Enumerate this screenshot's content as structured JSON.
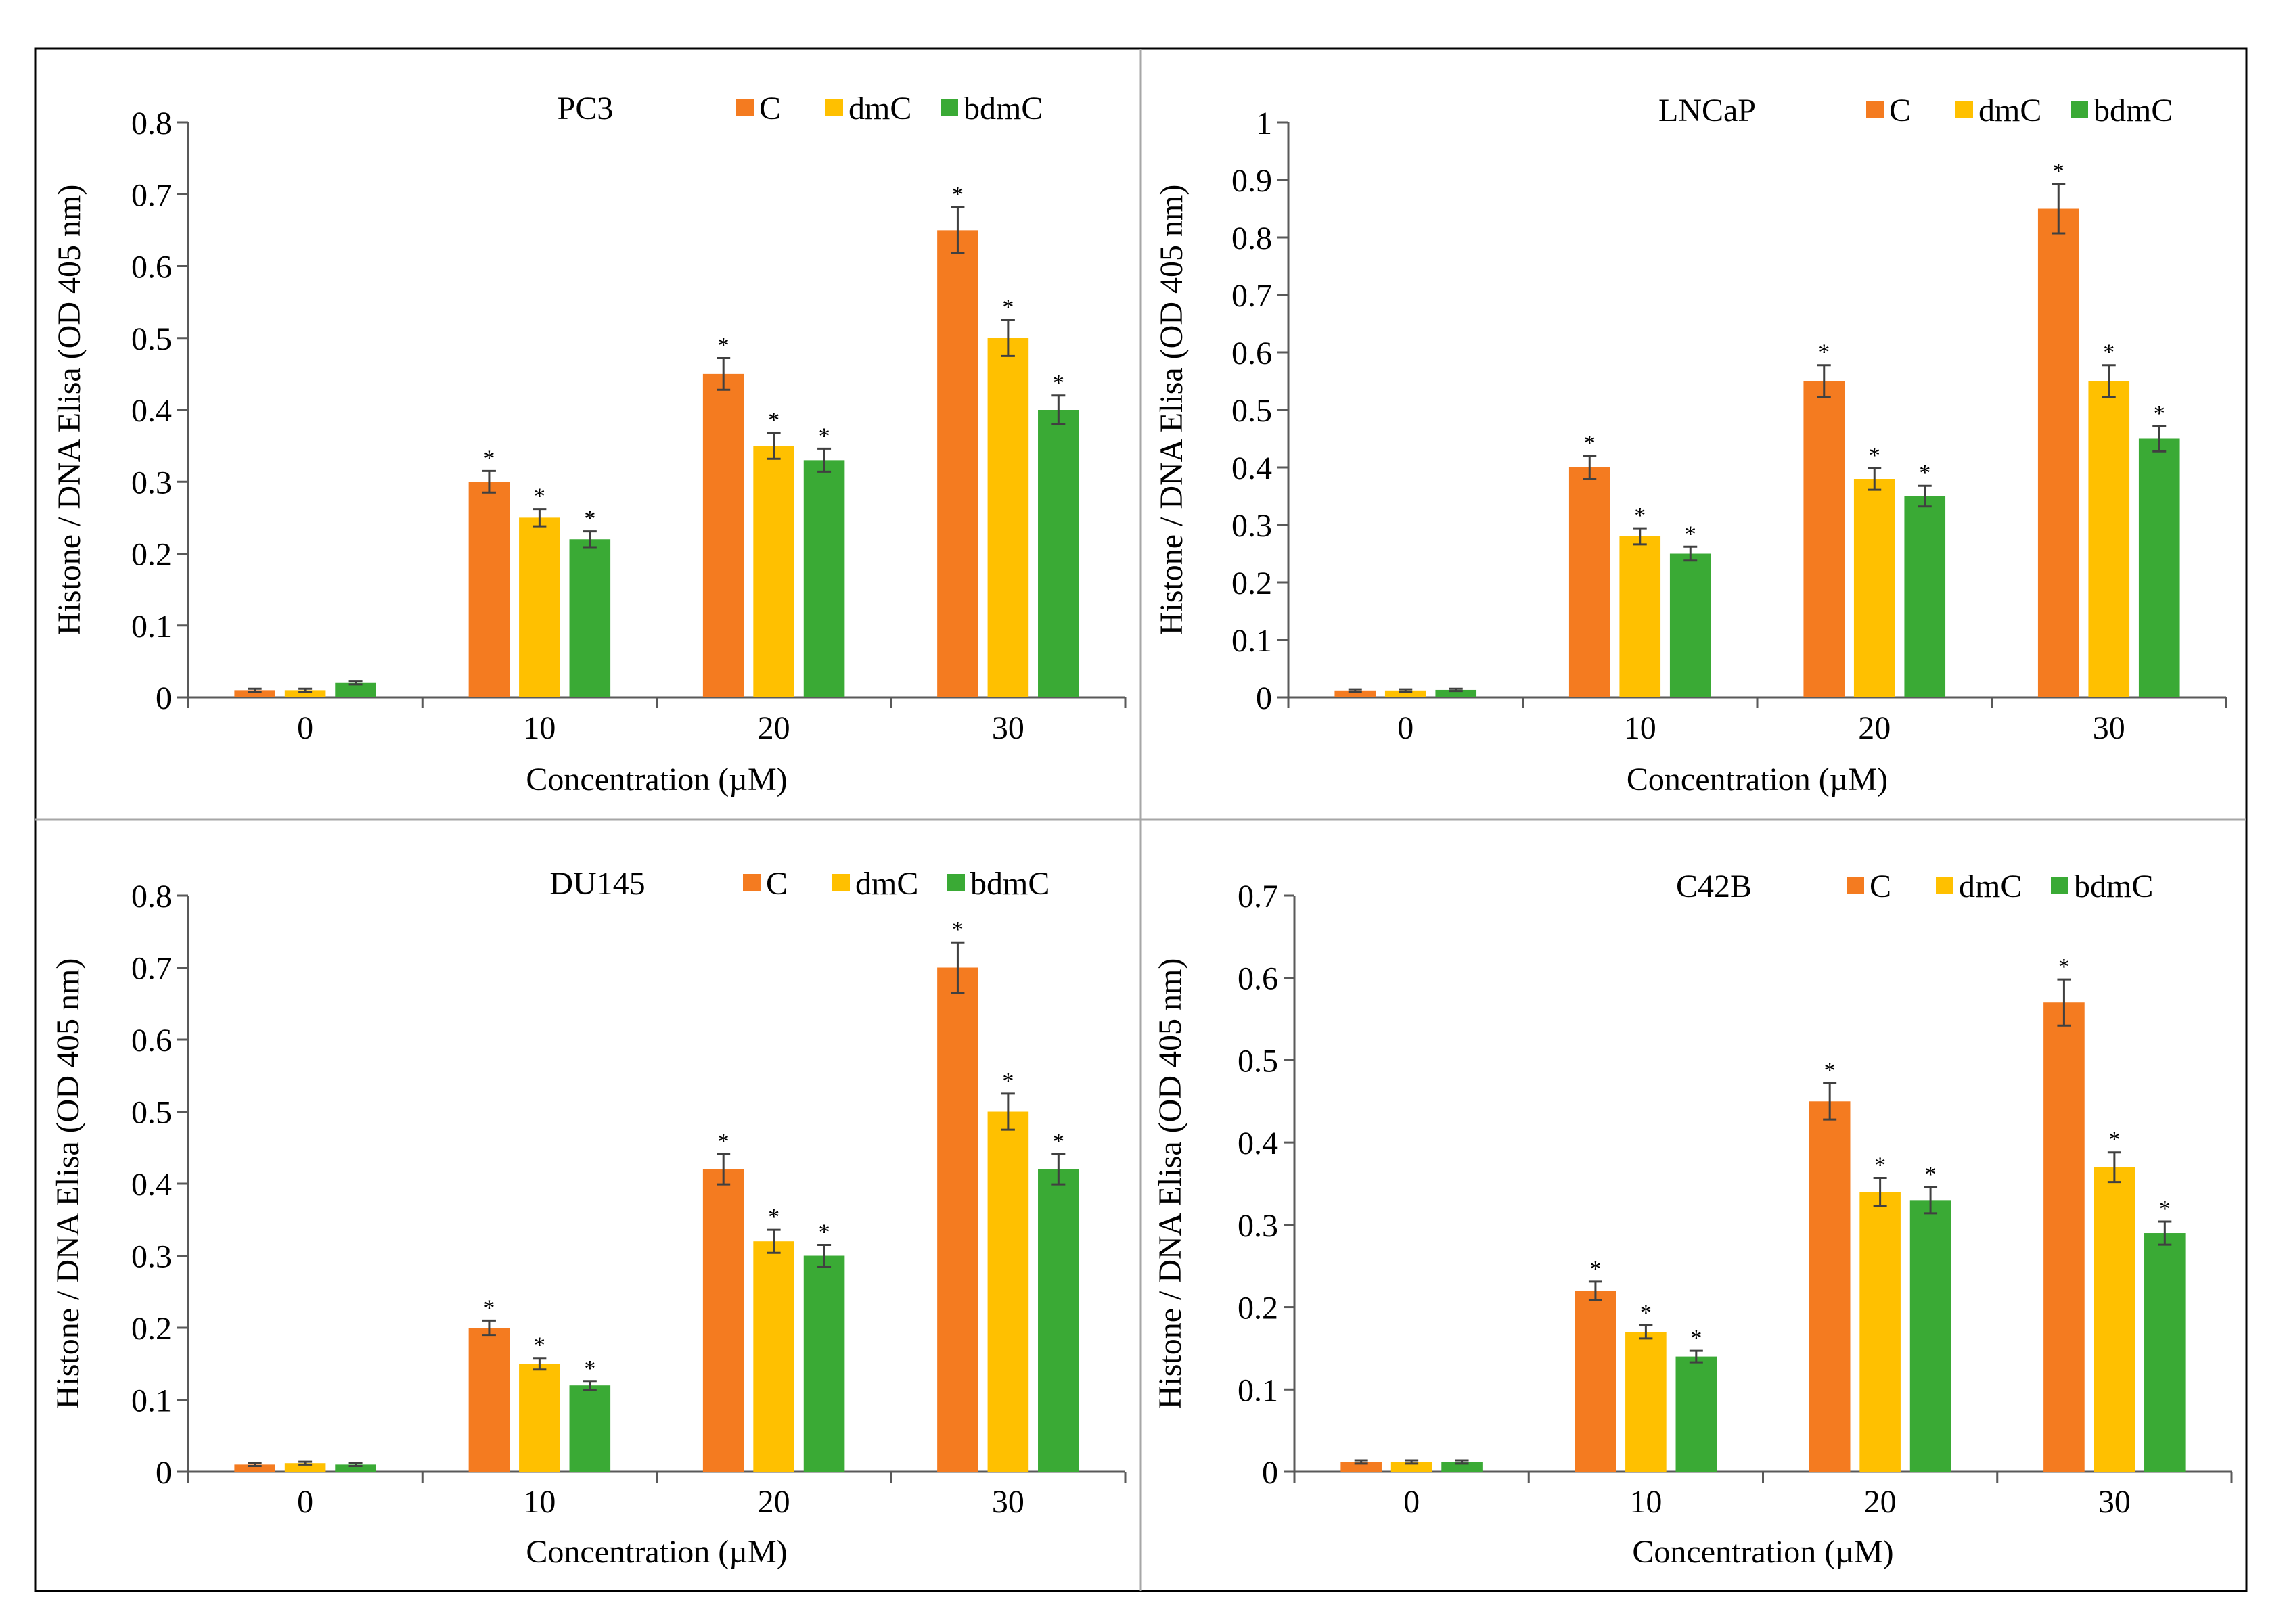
{
  "legend": [
    "C",
    "dmC",
    "bdmC"
  ],
  "colors": {
    "C": "#f47b20",
    "dmC": "#ffc000",
    "bdmC": "#3aaa35",
    "axis": "#595959",
    "frame": "#000000",
    "divider": "#a6a6a6"
  },
  "chart_data": [
    {
      "type": "bar",
      "title": "PC3",
      "categories": [
        "0",
        "10",
        "20",
        "30"
      ],
      "xlabel": "Concentration (µM)",
      "ylabel": "Histone / DNA Elisa (OD 405 nm)",
      "ylim": [
        0,
        0.8
      ],
      "yticks": [
        "0",
        "0.1",
        "0.2",
        "0.3",
        "0.4",
        "0.5",
        "0.6",
        "0.7",
        "0.8"
      ],
      "series": [
        {
          "name": "C",
          "values": [
            0.01,
            0.3,
            0.45,
            0.65
          ],
          "errors": [
            0.002,
            0.015,
            0.022,
            0.032
          ],
          "stars": [
            false,
            true,
            true,
            true
          ]
        },
        {
          "name": "dmC",
          "values": [
            0.01,
            0.25,
            0.35,
            0.5
          ],
          "errors": [
            0.002,
            0.012,
            0.018,
            0.025
          ],
          "stars": [
            false,
            true,
            true,
            true
          ]
        },
        {
          "name": "bdmC",
          "values": [
            0.02,
            0.22,
            0.33,
            0.4
          ],
          "errors": [
            0.002,
            0.011,
            0.016,
            0.02
          ],
          "stars": [
            false,
            true,
            true,
            true
          ]
        }
      ],
      "star_label": "*",
      "legend_position": "top-right"
    },
    {
      "type": "bar",
      "title": "LNCaP",
      "categories": [
        "0",
        "10",
        "20",
        "30"
      ],
      "xlabel": "Concentration (µM)",
      "ylabel": "Histone / DNA Elisa (OD 405 nm)",
      "ylim": [
        0,
        1
      ],
      "yticks": [
        "0",
        "0.1",
        "0.2",
        "0.3",
        "0.4",
        "0.5",
        "0.6",
        "0.7",
        "0.8",
        "0.9",
        "1"
      ],
      "series": [
        {
          "name": "C",
          "values": [
            0.012,
            0.4,
            0.55,
            0.85
          ],
          "errors": [
            0.002,
            0.02,
            0.028,
            0.043
          ],
          "stars": [
            false,
            true,
            true,
            true
          ]
        },
        {
          "name": "dmC",
          "values": [
            0.012,
            0.28,
            0.38,
            0.55
          ],
          "errors": [
            0.002,
            0.014,
            0.019,
            0.028
          ],
          "stars": [
            false,
            true,
            true,
            true
          ]
        },
        {
          "name": "bdmC",
          "values": [
            0.013,
            0.25,
            0.35,
            0.45
          ],
          "errors": [
            0.002,
            0.012,
            0.018,
            0.022
          ],
          "stars": [
            false,
            true,
            true,
            true
          ]
        }
      ],
      "star_label": "*",
      "legend_position": "top-right"
    },
    {
      "type": "bar",
      "title": "DU145",
      "categories": [
        "0",
        "10",
        "20",
        "30"
      ],
      "xlabel": "Concentration (µM)",
      "ylabel": "Histone / DNA Elisa (OD 405 nm)",
      "ylim": [
        0,
        0.8
      ],
      "yticks": [
        "0",
        "0.1",
        "0.2",
        "0.3",
        "0.4",
        "0.5",
        "0.6",
        "0.7",
        "0.8"
      ],
      "series": [
        {
          "name": "C",
          "values": [
            0.01,
            0.2,
            0.42,
            0.7
          ],
          "errors": [
            0.002,
            0.01,
            0.021,
            0.035
          ],
          "stars": [
            false,
            true,
            true,
            true
          ]
        },
        {
          "name": "dmC",
          "values": [
            0.012,
            0.15,
            0.32,
            0.5
          ],
          "errors": [
            0.002,
            0.008,
            0.016,
            0.025
          ],
          "stars": [
            false,
            true,
            true,
            true
          ]
        },
        {
          "name": "bdmC",
          "values": [
            0.01,
            0.12,
            0.3,
            0.42
          ],
          "errors": [
            0.002,
            0.006,
            0.015,
            0.021
          ],
          "stars": [
            false,
            true,
            true,
            true
          ]
        }
      ],
      "star_label": "*",
      "legend_position": "top-right"
    },
    {
      "type": "bar",
      "title": "C42B",
      "categories": [
        "0",
        "10",
        "20",
        "30"
      ],
      "xlabel": "Concentration (µM)",
      "ylabel": "Histone / DNA Elisa (OD 405 nm)",
      "ylim": [
        0,
        0.7
      ],
      "yticks": [
        "0",
        "0.1",
        "0.2",
        "0.3",
        "0.4",
        "0.5",
        "0.6",
        "0.7"
      ],
      "series": [
        {
          "name": "C",
          "values": [
            0.012,
            0.22,
            0.45,
            0.57
          ],
          "errors": [
            0.002,
            0.011,
            0.022,
            0.028
          ],
          "stars": [
            false,
            true,
            true,
            true
          ]
        },
        {
          "name": "dmC",
          "values": [
            0.012,
            0.17,
            0.34,
            0.37
          ],
          "errors": [
            0.002,
            0.008,
            0.017,
            0.018
          ],
          "stars": [
            false,
            true,
            true,
            true
          ]
        },
        {
          "name": "bdmC",
          "values": [
            0.012,
            0.14,
            0.33,
            0.29
          ],
          "errors": [
            0.002,
            0.007,
            0.016,
            0.014
          ],
          "stars": [
            false,
            true,
            true,
            true
          ]
        }
      ],
      "star_label": "*",
      "legend_position": "top-right"
    }
  ]
}
